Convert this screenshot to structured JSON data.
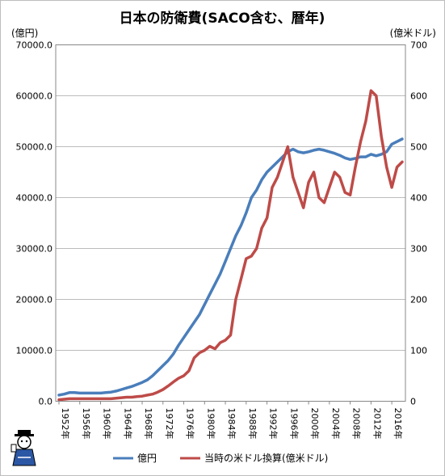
{
  "chart_data": {
    "type": "line",
    "title": "日本の防衛費(SACO含む、暦年)",
    "y_left_label": "(億円)",
    "y_right_label": "(億米ドル)",
    "y_left_lim": [
      0,
      70000
    ],
    "y_right_lim": [
      0,
      700
    ],
    "y_left_ticks": [
      "0.0",
      "10000.0",
      "20000.0",
      "30000.0",
      "40000.0",
      "50000.0",
      "60000.0",
      "70000.0"
    ],
    "y_right_ticks": [
      "0",
      "100",
      "200",
      "300",
      "400",
      "500",
      "600",
      "700"
    ],
    "x_ticks": [
      "1952年",
      "1956年",
      "1960年",
      "1964年",
      "1968年",
      "1972年",
      "1976年",
      "1980年",
      "1984年",
      "1988年",
      "1992年",
      "1996年",
      "2000年",
      "2004年",
      "2008年",
      "2012年",
      "2016年"
    ],
    "grid": true,
    "legend_position": "bottom",
    "x": [
      1952,
      1953,
      1954,
      1955,
      1956,
      1957,
      1958,
      1959,
      1960,
      1961,
      1962,
      1963,
      1964,
      1965,
      1966,
      1967,
      1968,
      1969,
      1970,
      1971,
      1972,
      1973,
      1974,
      1975,
      1976,
      1977,
      1978,
      1979,
      1980,
      1981,
      1982,
      1983,
      1984,
      1985,
      1986,
      1987,
      1988,
      1989,
      1990,
      1991,
      1992,
      1993,
      1994,
      1995,
      1996,
      1997,
      1998,
      1999,
      2000,
      2001,
      2002,
      2003,
      2004,
      2005,
      2006,
      2007,
      2008,
      2009,
      2010,
      2011,
      2012,
      2013,
      2014,
      2015,
      2016,
      2017,
      2018
    ],
    "series": [
      {
        "name": "億円",
        "axis": "left",
        "color": "#4a7ebb",
        "values": [
          1200,
          1400,
          1700,
          1700,
          1600,
          1600,
          1600,
          1600,
          1600,
          1700,
          1800,
          2000,
          2300,
          2600,
          2900,
          3300,
          3700,
          4200,
          5000,
          6000,
          7000,
          8000,
          9300,
          11000,
          12500,
          14000,
          15500,
          17000,
          19000,
          21000,
          23000,
          25000,
          27500,
          30000,
          32500,
          34500,
          37000,
          40000,
          41500,
          43500,
          45000,
          46000,
          47000,
          48000,
          49000,
          49500,
          49000,
          48800,
          49000,
          49300,
          49500,
          49300,
          49000,
          48700,
          48300,
          47800,
          47500,
          47700,
          48000,
          48000,
          48500,
          48200,
          48500,
          49000,
          50500,
          51000,
          51500
        ]
      },
      {
        "name": "当時の米ドル換算(億米ドル)",
        "axis": "right",
        "color": "#be4b48",
        "values": [
          3,
          4,
          5,
          5,
          5,
          5,
          5,
          5,
          5,
          5,
          5,
          6,
          7,
          8,
          8,
          9,
          10,
          12,
          14,
          18,
          23,
          30,
          38,
          45,
          50,
          60,
          85,
          95,
          100,
          108,
          103,
          115,
          120,
          130,
          200,
          240,
          280,
          285,
          300,
          340,
          360,
          420,
          440,
          470,
          500,
          440,
          410,
          380,
          430,
          450,
          400,
          390,
          420,
          450,
          440,
          410,
          405,
          460,
          510,
          550,
          610,
          600,
          520,
          460,
          420,
          460,
          470
        ]
      }
    ]
  }
}
